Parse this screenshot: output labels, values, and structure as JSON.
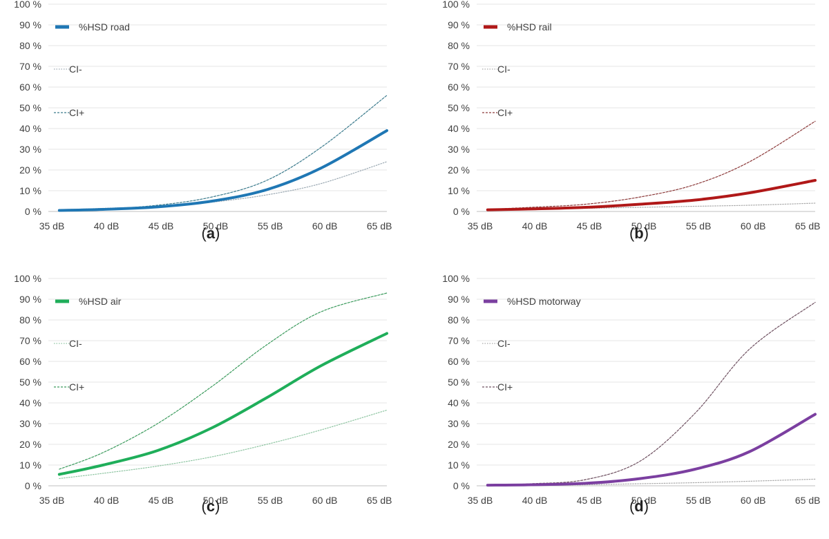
{
  "chart_data": [
    {
      "type": "line",
      "panel_label": "a",
      "x": [
        36,
        40,
        45,
        50,
        55,
        60,
        66
      ],
      "xlim": [
        35,
        66
      ],
      "ylim": [
        0,
        100
      ],
      "x_ticks": [
        35,
        40,
        45,
        50,
        55,
        60,
        65
      ],
      "x_tick_labels": [
        "35  dB",
        "40  dB",
        "45  dB",
        "50  dB",
        "55  dB",
        "60  dB",
        "65  dB"
      ],
      "y_ticks": [
        0,
        10,
        20,
        30,
        40,
        50,
        60,
        70,
        80,
        90,
        100
      ],
      "y_tick_labels": [
        "0 %",
        "10 %",
        "20 %",
        "30 %",
        "40 %",
        "50 %",
        "60 %",
        "70 %",
        "80 %",
        "90 %",
        "100 %"
      ],
      "series": [
        {
          "name": "%HSD road",
          "role": "main",
          "color": "#1f77b4",
          "values": [
            0.5,
            1.0,
            2.2,
            5.0,
            10.5,
            21.0,
            39.0
          ]
        },
        {
          "name": "CI-",
          "role": "ci_low",
          "color": "#9aa8b2",
          "values": [
            0.8,
            1.5,
            2.5,
            4.5,
            8.0,
            13.5,
            24.0
          ]
        },
        {
          "name": "CI+",
          "role": "ci_high",
          "color": "#3a7a8c",
          "values": [
            0.5,
            1.2,
            3.0,
            7.0,
            15.0,
            31.0,
            56.0
          ]
        }
      ]
    },
    {
      "type": "line",
      "panel_label": "b",
      "x": [
        36,
        40,
        45,
        50,
        55,
        60,
        66
      ],
      "xlim": [
        35,
        66
      ],
      "ylim": [
        0,
        100
      ],
      "x_ticks": [
        35,
        40,
        45,
        50,
        55,
        60,
        65
      ],
      "x_tick_labels": [
        "35  dB",
        "40  dB",
        "45  dB",
        "50  dB",
        "55  dB",
        "60  dB",
        "65  dB"
      ],
      "y_ticks": [
        0,
        10,
        20,
        30,
        40,
        50,
        60,
        70,
        80,
        90,
        100
      ],
      "y_tick_labels": [
        "0 %",
        "10 %",
        "20 %",
        "30 %",
        "40 %",
        "50 %",
        "60 %",
        "70 %",
        "80 %",
        "90 %",
        "100 %"
      ],
      "series": [
        {
          "name": "%HSD rail",
          "role": "main",
          "color": "#b01818",
          "values": [
            0.8,
            1.2,
            2.0,
            3.5,
            5.5,
            9.0,
            15.0
          ]
        },
        {
          "name": "CI-",
          "role": "ci_low",
          "color": "#a8a8a8",
          "values": [
            0.8,
            1.0,
            1.5,
            2.0,
            2.5,
            3.0,
            4.0
          ]
        },
        {
          "name": "CI+",
          "role": "ci_high",
          "color": "#8c3a3a",
          "values": [
            1.0,
            2.0,
            3.5,
            7.0,
            13.0,
            24.0,
            43.5
          ]
        }
      ]
    },
    {
      "type": "line",
      "panel_label": "c",
      "x": [
        36,
        40,
        45,
        50,
        55,
        60,
        66
      ],
      "xlim": [
        35,
        66
      ],
      "ylim": [
        0,
        100
      ],
      "x_ticks": [
        35,
        40,
        45,
        50,
        55,
        60,
        65
      ],
      "x_tick_labels": [
        "35  dB",
        "40  dB",
        "45  dB",
        "50  dB",
        "55  dB",
        "60  dB",
        "65  dB"
      ],
      "y_ticks": [
        0,
        10,
        20,
        30,
        40,
        50,
        60,
        70,
        80,
        90,
        100
      ],
      "y_tick_labels": [
        "0 %",
        "10 %",
        "20 %",
        "30 %",
        "40 %",
        "50 %",
        "60 %",
        "70 %",
        "80 %",
        "90 %",
        "100 %"
      ],
      "series": [
        {
          "name": "%HSD air",
          "role": "main",
          "color": "#1fae5a",
          "values": [
            5.5,
            10.0,
            17.0,
            28.0,
            42.5,
            58.0,
            73.5
          ]
        },
        {
          "name": "CI-",
          "role": "ci_low",
          "color": "#8cc4a0",
          "values": [
            3.5,
            6.0,
            9.5,
            14.0,
            20.0,
            27.0,
            36.5
          ]
        },
        {
          "name": "CI+",
          "role": "ci_high",
          "color": "#3a9a5c",
          "values": [
            8.0,
            16.0,
            30.0,
            48.0,
            68.0,
            84.0,
            93.0
          ]
        }
      ]
    },
    {
      "type": "line",
      "panel_label": "d",
      "x": [
        36,
        40,
        45,
        50,
        55,
        60,
        66
      ],
      "xlim": [
        35,
        66
      ],
      "ylim": [
        0,
        100
      ],
      "x_ticks": [
        35,
        40,
        45,
        50,
        55,
        60,
        65
      ],
      "x_tick_labels": [
        "35  dB",
        "40  dB",
        "45  dB",
        "50  dB",
        "55  dB",
        "60  dB",
        "65  dB"
      ],
      "y_ticks": [
        0,
        10,
        20,
        30,
        40,
        50,
        60,
        70,
        80,
        90,
        100
      ],
      "y_tick_labels": [
        "0 %",
        "10 %",
        "20 %",
        "30 %",
        "40 %",
        "50 %",
        "60 %",
        "70 %",
        "80 %",
        "90 %",
        "100 %"
      ],
      "series": [
        {
          "name": "%HSD motorway",
          "role": "main",
          "color": "#7b3fa0",
          "values": [
            0.3,
            0.5,
            1.2,
            3.5,
            8.0,
            16.5,
            34.5
          ]
        },
        {
          "name": "CI-",
          "role": "ci_low",
          "color": "#a8a8a8",
          "values": [
            0.2,
            0.3,
            0.5,
            1.0,
            1.5,
            2.2,
            3.2
          ]
        },
        {
          "name": "CI+",
          "role": "ci_high",
          "color": "#6e5060",
          "values": [
            0.3,
            1.0,
            3.0,
            12.0,
            35.0,
            66.0,
            88.5
          ]
        }
      ]
    }
  ]
}
